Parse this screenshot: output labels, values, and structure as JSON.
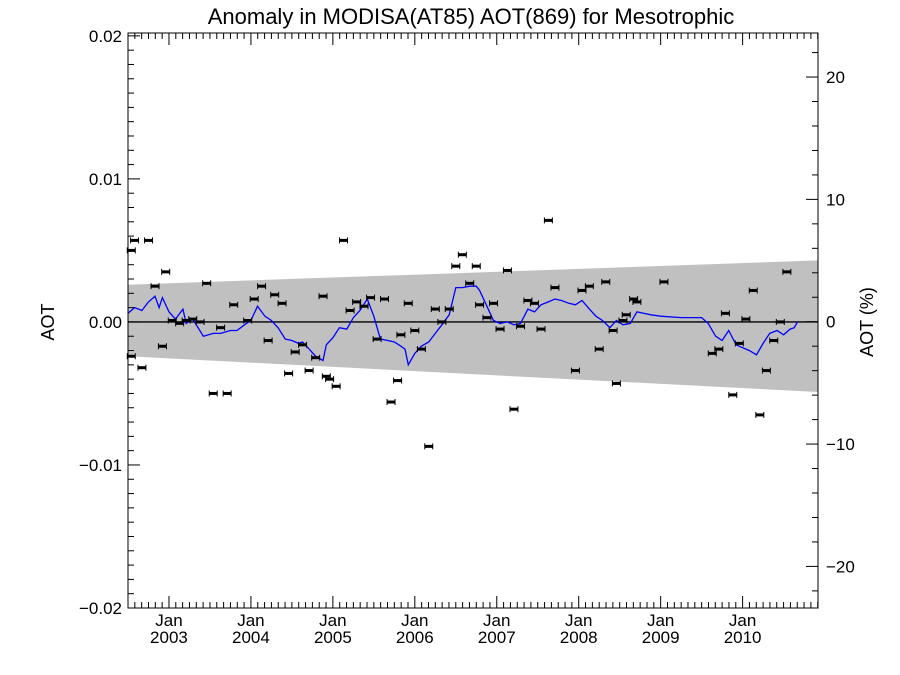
{
  "chart_data": {
    "type": "scatter",
    "title": "Anomaly in MODISA(AT85) AOT(869) for Mesotrophic",
    "ylabel": "AOT",
    "y2label": "AOT (%)",
    "xlabel": "",
    "xlim": [
      2002.5,
      2010.92
    ],
    "ylim": [
      -0.02,
      0.0202
    ],
    "y2lim": [
      -23.4,
      23.6
    ],
    "y_ticks": [
      {
        "value": 0.02,
        "label": "0.02"
      },
      {
        "value": 0.01,
        "label": "0.01"
      },
      {
        "value": 0.0,
        "label": "0.00"
      },
      {
        "value": -0.01,
        "label": "−0.01"
      },
      {
        "value": -0.02,
        "label": "−0.02"
      }
    ],
    "y2_ticks": [
      {
        "value": 20,
        "label": "20"
      },
      {
        "value": 10,
        "label": "10"
      },
      {
        "value": 0,
        "label": "0"
      },
      {
        "value": -10,
        "label": "−10"
      },
      {
        "value": -20,
        "label": "−20"
      }
    ],
    "x_ticks": [
      {
        "value": 2003.0,
        "month": "Jan",
        "year": "2003"
      },
      {
        "value": 2004.0,
        "month": "Jan",
        "year": "2004"
      },
      {
        "value": 2005.0,
        "month": "Jan",
        "year": "2005"
      },
      {
        "value": 2006.0,
        "month": "Jan",
        "year": "2006"
      },
      {
        "value": 2007.0,
        "month": "Jan",
        "year": "2007"
      },
      {
        "value": 2008.0,
        "month": "Jan",
        "year": "2008"
      },
      {
        "value": 2009.0,
        "month": "Jan",
        "year": "2009"
      },
      {
        "value": 2010.0,
        "month": "Jan",
        "year": "2010"
      }
    ],
    "uncertainty_band": {
      "x": [
        2002.5,
        2010.92
      ],
      "upper": [
        0.0026,
        0.0043
      ],
      "lower": [
        -0.0024,
        -0.0049
      ],
      "color": "#c0c0c0"
    },
    "zero_line": {
      "y": 0.0,
      "color": "#000000"
    },
    "series": [
      {
        "kind": "points",
        "color": "#000000",
        "points": [
          {
            "x": 2002.54,
            "y": -0.0024
          },
          {
            "x": 2002.54,
            "y": 0.005
          },
          {
            "x": 2002.58,
            "y": 0.0057
          },
          {
            "x": 2002.67,
            "y": -0.0032
          },
          {
            "x": 2002.75,
            "y": 0.0057
          },
          {
            "x": 2002.83,
            "y": 0.0025
          },
          {
            "x": 2002.92,
            "y": -0.0017
          },
          {
            "x": 2002.96,
            "y": 0.0035
          },
          {
            "x": 2003.04,
            "y": 0.0001
          },
          {
            "x": 2003.13,
            "y": -0.0001
          },
          {
            "x": 2003.21,
            "y": 0.0001
          },
          {
            "x": 2003.29,
            "y": 0.0002
          },
          {
            "x": 2003.38,
            "y": 0.0
          },
          {
            "x": 2003.46,
            "y": 0.0027
          },
          {
            "x": 2003.54,
            "y": -0.005
          },
          {
            "x": 2003.63,
            "y": -0.0004
          },
          {
            "x": 2003.71,
            "y": -0.005
          },
          {
            "x": 2003.79,
            "y": 0.0012
          },
          {
            "x": 2003.96,
            "y": 0.0001
          },
          {
            "x": 2004.04,
            "y": 0.0016
          },
          {
            "x": 2004.13,
            "y": 0.0025
          },
          {
            "x": 2004.21,
            "y": -0.0013
          },
          {
            "x": 2004.29,
            "y": 0.0019
          },
          {
            "x": 2004.38,
            "y": 0.0013
          },
          {
            "x": 2004.46,
            "y": -0.0036
          },
          {
            "x": 2004.54,
            "y": -0.0021
          },
          {
            "x": 2004.63,
            "y": -0.0016
          },
          {
            "x": 2004.71,
            "y": -0.0034
          },
          {
            "x": 2004.79,
            "y": -0.0025
          },
          {
            "x": 2004.88,
            "y": 0.0018
          },
          {
            "x": 2004.92,
            "y": -0.0038
          },
          {
            "x": 2004.96,
            "y": -0.004
          },
          {
            "x": 2005.04,
            "y": -0.0045
          },
          {
            "x": 2005.13,
            "y": 0.0057
          },
          {
            "x": 2005.21,
            "y": 0.0008
          },
          {
            "x": 2005.29,
            "y": 0.0014
          },
          {
            "x": 2005.38,
            "y": 0.0011
          },
          {
            "x": 2005.46,
            "y": 0.0017
          },
          {
            "x": 2005.54,
            "y": -0.0012
          },
          {
            "x": 2005.63,
            "y": 0.0016
          },
          {
            "x": 2005.71,
            "y": -0.0056
          },
          {
            "x": 2005.79,
            "y": -0.0041
          },
          {
            "x": 2005.83,
            "y": -0.0009
          },
          {
            "x": 2005.92,
            "y": 0.0013
          },
          {
            "x": 2006.0,
            "y": -0.0006
          },
          {
            "x": 2006.08,
            "y": -0.0019
          },
          {
            "x": 2006.17,
            "y": -0.0087
          },
          {
            "x": 2006.25,
            "y": 0.0009
          },
          {
            "x": 2006.33,
            "y": 0.0
          },
          {
            "x": 2006.42,
            "y": 0.0009
          },
          {
            "x": 2006.5,
            "y": 0.0039
          },
          {
            "x": 2006.58,
            "y": 0.0047
          },
          {
            "x": 2006.67,
            "y": 0.0027
          },
          {
            "x": 2006.75,
            "y": 0.0039
          },
          {
            "x": 2006.79,
            "y": 0.0012
          },
          {
            "x": 2006.88,
            "y": 0.0003
          },
          {
            "x": 2006.96,
            "y": 0.0013
          },
          {
            "x": 2007.04,
            "y": -0.0005
          },
          {
            "x": 2007.13,
            "y": 0.0036
          },
          {
            "x": 2007.21,
            "y": -0.0061
          },
          {
            "x": 2007.29,
            "y": -0.0003
          },
          {
            "x": 2007.38,
            "y": 0.0015
          },
          {
            "x": 2007.46,
            "y": 0.0013
          },
          {
            "x": 2007.54,
            "y": -0.0005
          },
          {
            "x": 2007.63,
            "y": 0.0071
          },
          {
            "x": 2007.71,
            "y": 0.0024
          },
          {
            "x": 2007.96,
            "y": -0.0034
          },
          {
            "x": 2008.04,
            "y": 0.0022
          },
          {
            "x": 2008.13,
            "y": 0.0025
          },
          {
            "x": 2008.25,
            "y": -0.0019
          },
          {
            "x": 2008.33,
            "y": 0.0028
          },
          {
            "x": 2008.42,
            "y": -0.0006
          },
          {
            "x": 2008.46,
            "y": -0.0043
          },
          {
            "x": 2008.54,
            "y": 0.0001
          },
          {
            "x": 2008.58,
            "y": 0.0005
          },
          {
            "x": 2008.67,
            "y": 0.0016
          },
          {
            "x": 2008.71,
            "y": 0.0014
          },
          {
            "x": 2009.04,
            "y": 0.0028
          },
          {
            "x": 2009.63,
            "y": -0.0022
          },
          {
            "x": 2009.71,
            "y": -0.0019
          },
          {
            "x": 2009.79,
            "y": 0.0006
          },
          {
            "x": 2009.88,
            "y": -0.0051
          },
          {
            "x": 2009.96,
            "y": -0.0015
          },
          {
            "x": 2010.04,
            "y": 0.0002
          },
          {
            "x": 2010.13,
            "y": 0.0022
          },
          {
            "x": 2010.21,
            "y": -0.0065
          },
          {
            "x": 2010.29,
            "y": -0.0034
          },
          {
            "x": 2010.38,
            "y": -0.0013
          },
          {
            "x": 2010.46,
            "y": 0.0
          },
          {
            "x": 2010.54,
            "y": 0.0035
          }
        ]
      },
      {
        "kind": "line",
        "color": "#0000ff",
        "points": [
          {
            "x": 2002.5,
            "y": 0.0006
          },
          {
            "x": 2002.58,
            "y": 0.001
          },
          {
            "x": 2002.67,
            "y": 0.0008
          },
          {
            "x": 2002.75,
            "y": 0.0014
          },
          {
            "x": 2002.83,
            "y": 0.0018
          },
          {
            "x": 2002.88,
            "y": 0.001
          },
          {
            "x": 2002.92,
            "y": 0.0017
          },
          {
            "x": 2003.0,
            "y": 0.0007
          },
          {
            "x": 2003.08,
            "y": 0.0002
          },
          {
            "x": 2003.17,
            "y": 0.0009
          },
          {
            "x": 2003.21,
            "y": -0.0001
          },
          {
            "x": 2003.29,
            "y": 0.0002
          },
          {
            "x": 2003.42,
            "y": -0.001
          },
          {
            "x": 2003.54,
            "y": -0.0008
          },
          {
            "x": 2003.63,
            "y": -0.0008
          },
          {
            "x": 2003.75,
            "y": -0.0006
          },
          {
            "x": 2003.83,
            "y": -0.0006
          },
          {
            "x": 2003.92,
            "y": -0.0002
          },
          {
            "x": 2004.0,
            "y": 0.0001
          },
          {
            "x": 2004.08,
            "y": 0.0011
          },
          {
            "x": 2004.17,
            "y": 0.0004
          },
          {
            "x": 2004.25,
            "y": 0.0001
          },
          {
            "x": 2004.33,
            "y": -0.0004
          },
          {
            "x": 2004.42,
            "y": -0.0012
          },
          {
            "x": 2004.5,
            "y": -0.0013
          },
          {
            "x": 2004.58,
            "y": -0.0015
          },
          {
            "x": 2004.63,
            "y": -0.0014
          },
          {
            "x": 2004.71,
            "y": -0.0019
          },
          {
            "x": 2004.79,
            "y": -0.0024
          },
          {
            "x": 2004.88,
            "y": -0.0027
          },
          {
            "x": 2004.92,
            "y": -0.0016
          },
          {
            "x": 2005.0,
            "y": -0.0011
          },
          {
            "x": 2005.08,
            "y": -0.0004
          },
          {
            "x": 2005.17,
            "y": -0.0005
          },
          {
            "x": 2005.25,
            "y": 0.0003
          },
          {
            "x": 2005.33,
            "y": 0.0008
          },
          {
            "x": 2005.42,
            "y": 0.0016
          },
          {
            "x": 2005.5,
            "y": 0.0004
          },
          {
            "x": 2005.58,
            "y": -0.0012
          },
          {
            "x": 2005.67,
            "y": -0.0013
          },
          {
            "x": 2005.75,
            "y": -0.0014
          },
          {
            "x": 2005.83,
            "y": -0.0017
          },
          {
            "x": 2005.88,
            "y": -0.0019
          },
          {
            "x": 2005.92,
            "y": -0.003
          },
          {
            "x": 2006.0,
            "y": -0.0022
          },
          {
            "x": 2006.08,
            "y": -0.0017
          },
          {
            "x": 2006.17,
            "y": -0.0014
          },
          {
            "x": 2006.25,
            "y": -0.0008
          },
          {
            "x": 2006.33,
            "y": -0.0002
          },
          {
            "x": 2006.42,
            "y": 0.0005
          },
          {
            "x": 2006.5,
            "y": 0.0024
          },
          {
            "x": 2006.58,
            "y": 0.0024
          },
          {
            "x": 2006.67,
            "y": 0.0025
          },
          {
            "x": 2006.75,
            "y": 0.0025
          },
          {
            "x": 2006.79,
            "y": 0.0022
          },
          {
            "x": 2006.88,
            "y": 0.0011
          },
          {
            "x": 2006.96,
            "y": 0.0001
          },
          {
            "x": 2007.04,
            "y": -0.0001
          },
          {
            "x": 2007.13,
            "y": 0.0
          },
          {
            "x": 2007.21,
            "y": -0.0002
          },
          {
            "x": 2007.29,
            "y": -0.0001
          },
          {
            "x": 2007.38,
            "y": 0.0009
          },
          {
            "x": 2007.46,
            "y": 0.0007
          },
          {
            "x": 2007.54,
            "y": 0.0012
          },
          {
            "x": 2007.63,
            "y": 0.0014
          },
          {
            "x": 2007.71,
            "y": 0.0016
          },
          {
            "x": 2007.79,
            "y": 0.0015
          },
          {
            "x": 2007.88,
            "y": 0.0013
          },
          {
            "x": 2007.96,
            "y": 0.0012
          },
          {
            "x": 2008.04,
            "y": 0.0015
          },
          {
            "x": 2008.13,
            "y": 0.0009
          },
          {
            "x": 2008.21,
            "y": 0.0004
          },
          {
            "x": 2008.29,
            "y": 0.0001
          },
          {
            "x": 2008.38,
            "y": -0.0004
          },
          {
            "x": 2008.46,
            "y": 0.0001
          },
          {
            "x": 2008.54,
            "y": -0.0002
          },
          {
            "x": 2008.63,
            "y": -0.0001
          },
          {
            "x": 2008.71,
            "y": 0.0007
          },
          {
            "x": 2008.79,
            "y": 0.0006
          },
          {
            "x": 2008.88,
            "y": 0.0005
          },
          {
            "x": 2009.0,
            "y": 0.0004
          },
          {
            "x": 2009.25,
            "y": 0.0003
          },
          {
            "x": 2009.5,
            "y": 0.0003
          },
          {
            "x": 2009.58,
            "y": -0.0001
          },
          {
            "x": 2009.67,
            "y": -0.001
          },
          {
            "x": 2009.75,
            "y": -0.0013
          },
          {
            "x": 2009.83,
            "y": -0.0006
          },
          {
            "x": 2009.92,
            "y": -0.0016
          },
          {
            "x": 2010.0,
            "y": -0.0018
          },
          {
            "x": 2010.08,
            "y": -0.002
          },
          {
            "x": 2010.17,
            "y": -0.0023
          },
          {
            "x": 2010.25,
            "y": -0.0015
          },
          {
            "x": 2010.33,
            "y": -0.0008
          },
          {
            "x": 2010.42,
            "y": -0.0006
          },
          {
            "x": 2010.5,
            "y": -0.0009
          },
          {
            "x": 2010.58,
            "y": -0.0005
          },
          {
            "x": 2010.63,
            "y": -0.0004
          },
          {
            "x": 2010.67,
            "y": 0.0
          }
        ]
      }
    ],
    "grid": false,
    "legend": "none"
  }
}
